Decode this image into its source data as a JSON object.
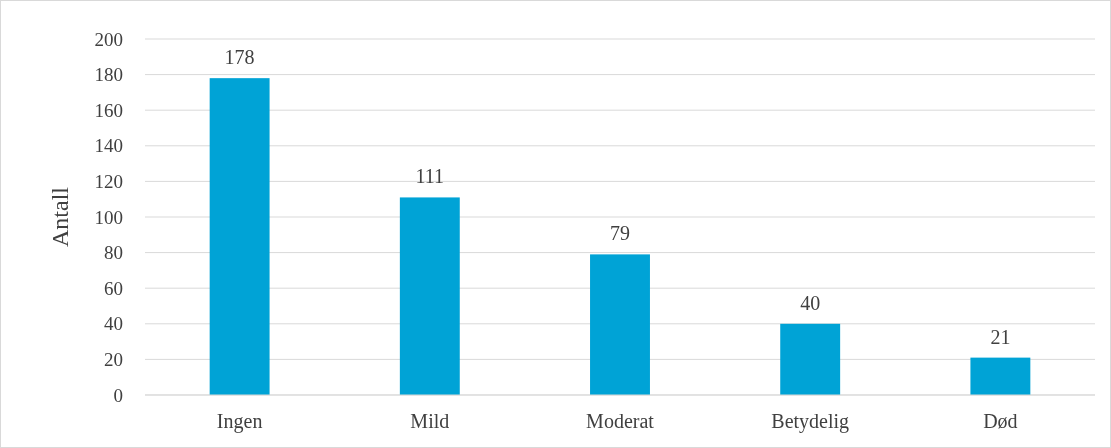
{
  "chart_data": {
    "type": "bar",
    "ylabel": "Antall",
    "categories": [
      "Ingen",
      "Mild",
      "Moderat",
      "Betydelig",
      "Død"
    ],
    "values": [
      178,
      111,
      79,
      40,
      21
    ],
    "color": "#00a3d6",
    "ylim": [
      0,
      200
    ],
    "yticks": [
      0,
      20,
      40,
      60,
      80,
      100,
      120,
      140,
      160,
      180,
      200
    ],
    "grid": "y",
    "data_labels": true
  }
}
